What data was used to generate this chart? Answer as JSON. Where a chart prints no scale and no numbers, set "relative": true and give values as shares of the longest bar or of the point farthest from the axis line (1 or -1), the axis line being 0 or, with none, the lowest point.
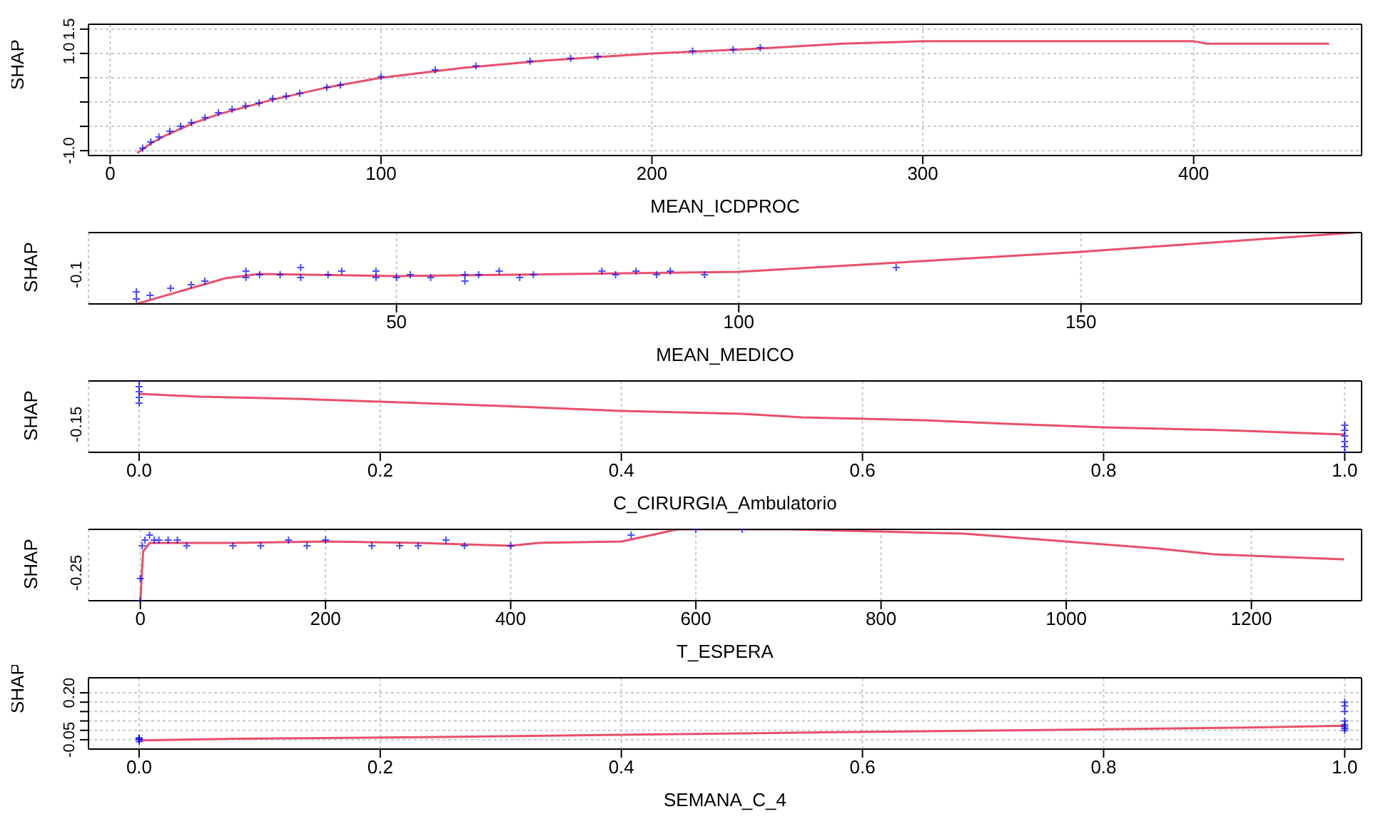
{
  "chart_data": [
    {
      "type": "scatter",
      "xlabel": "MEAN_ICDPROC",
      "ylabel": "SHAP",
      "xlim": [
        -8,
        462
      ],
      "xticks": [
        0,
        100,
        200,
        300,
        400
      ],
      "ylim": [
        -1.1,
        1.6
      ],
      "yticks": [
        {
          "value": -1.0,
          "label": "-1.0"
        },
        {
          "value": -0.5,
          "label": null
        },
        {
          "value": 0,
          "label": null
        },
        {
          "value": 0.5,
          "label": null
        },
        {
          "value": 1.0,
          "label": "1.0"
        },
        {
          "value": 1.5,
          "label": "1.5"
        }
      ],
      "grid": true,
      "series": [
        {
          "type": "scatter",
          "marker": "cross",
          "color": "#0000ff",
          "x": [
            12,
            15,
            18,
            22,
            26,
            30,
            35,
            40,
            45,
            50,
            55,
            60,
            65,
            70,
            80,
            85,
            100,
            120,
            135,
            155,
            170,
            180,
            215,
            230,
            240
          ],
          "values": [
            -0.95,
            -0.82,
            -0.72,
            -0.6,
            -0.5,
            -0.42,
            -0.32,
            -0.22,
            -0.15,
            -0.08,
            -0.02,
            0.07,
            0.12,
            0.18,
            0.3,
            0.35,
            0.52,
            0.66,
            0.74,
            0.84,
            0.9,
            0.94,
            1.05,
            1.08,
            1.12
          ]
        },
        {
          "type": "line",
          "color": "#e8506a",
          "x": [
            10,
            15,
            20,
            30,
            40,
            60,
            80,
            100,
            130,
            160,
            200,
            240,
            270,
            300,
            350,
            400,
            405,
            450
          ],
          "values": [
            -1.05,
            -0.85,
            -0.7,
            -0.45,
            -0.25,
            0.05,
            0.3,
            0.5,
            0.7,
            0.85,
            1.0,
            1.1,
            1.2,
            1.25,
            1.25,
            1.25,
            1.2,
            1.2
          ]
        }
      ]
    },
    {
      "type": "scatter",
      "relative": true,
      "xlabel": "MEAN_MEDICO",
      "ylabel": "SHAP",
      "annotations": [
        "-0.1"
      ],
      "xlim": [
        5,
        191
      ],
      "xticks": [
        50,
        100,
        150
      ],
      "grid": "x",
      "series": [
        {
          "type": "scatter",
          "marker": "cross",
          "color": "#0000ff",
          "x": [
            12,
            12,
            14,
            17,
            20,
            22,
            28,
            28,
            30,
            33,
            36,
            36,
            40,
            42,
            47,
            47,
            50,
            52,
            55,
            60,
            60,
            62,
            65,
            68,
            70,
            80,
            82,
            85,
            88,
            90,
            95,
            123
          ],
          "values": [
            0.07,
            0.17,
            0.12,
            0.22,
            0.27,
            0.32,
            0.37,
            0.46,
            0.41,
            0.41,
            0.51,
            0.37,
            0.41,
            0.46,
            0.37,
            0.46,
            0.37,
            0.41,
            0.37,
            0.41,
            0.32,
            0.41,
            0.46,
            0.37,
            0.41,
            0.46,
            0.41,
            0.46,
            0.41,
            0.46,
            0.41,
            0.51
          ]
        },
        {
          "type": "line",
          "color": "#e8506a",
          "x": [
            12,
            25,
            30,
            50,
            100,
            150,
            190
          ],
          "values": [
            0,
            0.36,
            0.42,
            0.39,
            0.45,
            0.73,
            1
          ]
        }
      ]
    },
    {
      "type": "scatter",
      "relative": true,
      "xlabel": "C_CIRURGIA_Ambulatorio",
      "ylabel": "SHAP",
      "annotations": [
        "-0.15"
      ],
      "xlim": [
        -0.042,
        1.014
      ],
      "xticks": [
        {
          "value": 0,
          "label": "0.0"
        },
        {
          "value": 0.2,
          "label": "0.2"
        },
        {
          "value": 0.4,
          "label": "0.4"
        },
        {
          "value": 0.6,
          "label": "0.6"
        },
        {
          "value": 0.8,
          "label": "0.8"
        },
        {
          "value": 1,
          "label": "1.0"
        }
      ],
      "grid": "x",
      "series": [
        {
          "type": "scatter",
          "marker": "cross",
          "color": "#0000ff",
          "x": [
            0,
            0,
            0,
            0,
            0,
            1,
            1,
            1,
            1,
            1,
            1
          ],
          "values": [
            1,
            0.92,
            0.85,
            0.77,
            0.69,
            0.38,
            0.31,
            0.23,
            0.15,
            0.08,
            0
          ]
        },
        {
          "type": "line",
          "color": "#e8506a",
          "x": [
            0,
            0.05,
            0.13,
            0.2,
            0.3,
            0.4,
            0.5,
            0.55,
            0.65,
            0.72,
            0.8,
            0.9,
            1.0
          ],
          "values": [
            0.82,
            0.78,
            0.75,
            0.71,
            0.65,
            0.58,
            0.54,
            0.49,
            0.45,
            0.4,
            0.35,
            0.31,
            0.25
          ]
        }
      ]
    },
    {
      "type": "scatter",
      "relative": true,
      "xlabel": "T_ESPERA",
      "ylabel": "SHAP",
      "annotations": [
        "-0.25"
      ],
      "xlim": [
        -56,
        1319
      ],
      "xticks": [
        0,
        200,
        400,
        600,
        800,
        1000,
        1200
      ],
      "grid": "x",
      "series": [
        {
          "type": "scatter",
          "marker": "cross",
          "color": "#0000ff",
          "x": [
            0,
            0,
            2,
            5,
            10,
            15,
            20,
            30,
            40,
            50,
            100,
            130,
            160,
            180,
            200,
            250,
            280,
            300,
            330,
            350,
            400,
            530,
            600,
            650
          ],
          "values": [
            0,
            0.31,
            0.77,
            0.85,
            0.92,
            0.85,
            0.85,
            0.85,
            0.85,
            0.77,
            0.77,
            0.77,
            0.85,
            0.77,
            0.85,
            0.77,
            0.77,
            0.77,
            0.85,
            0.77,
            0.77,
            0.92,
            1,
            1
          ]
        },
        {
          "type": "line",
          "color": "#e8506a",
          "x": [
            0,
            3,
            10,
            60,
            100,
            200,
            300,
            400,
            430,
            520,
            580,
            700,
            890,
            1000,
            1100,
            1160,
            1300
          ],
          "values": [
            0,
            0.69,
            0.81,
            0.81,
            0.81,
            0.83,
            0.81,
            0.77,
            0.81,
            0.83,
            1,
            1,
            0.94,
            0.83,
            0.73,
            0.65,
            0.58
          ]
        }
      ]
    },
    {
      "type": "scatter",
      "xlabel": "SEMANA_C_4",
      "ylabel": "SHAP",
      "xlim": [
        -0.042,
        1.014
      ],
      "xticks": [
        {
          "value": 0,
          "label": "0.0"
        },
        {
          "value": 0.2,
          "label": "0.2"
        },
        {
          "value": 0.4,
          "label": "0.4"
        },
        {
          "value": 0.6,
          "label": "0.6"
        },
        {
          "value": 0.8,
          "label": "0.8"
        },
        {
          "value": 1,
          "label": "1.0"
        }
      ],
      "ylim": [
        -0.1,
        0.28
      ],
      "yticks": [
        {
          "value": -0.05,
          "label": "-0.05"
        },
        {
          "value": 0,
          "label": null
        },
        {
          "value": 0.05,
          "label": null
        },
        {
          "value": 0.1,
          "label": null
        },
        {
          "value": 0.15,
          "label": null
        },
        {
          "value": 0.2,
          "label": "0.20"
        }
      ],
      "grid": true,
      "series": [
        {
          "type": "scatter",
          "marker": "cross",
          "color": "#0000ff",
          "x": [
            0,
            0,
            0,
            0,
            1,
            1,
            1,
            1,
            1,
            1,
            1,
            1
          ],
          "values": [
            -0.06,
            -0.05,
            -0.045,
            -0.04,
            0.0,
            0.01,
            0.02,
            0.03,
            0.05,
            0.1,
            0.13,
            0.15
          ]
        },
        {
          "type": "line",
          "color": "#e8506a",
          "x": [
            0,
            0.08,
            0.25,
            0.42,
            0.58,
            0.75,
            0.92,
            1.0
          ],
          "values": [
            -0.053,
            -0.045,
            -0.035,
            -0.022,
            -0.01,
            0.002,
            0.015,
            0.024
          ]
        }
      ]
    }
  ]
}
